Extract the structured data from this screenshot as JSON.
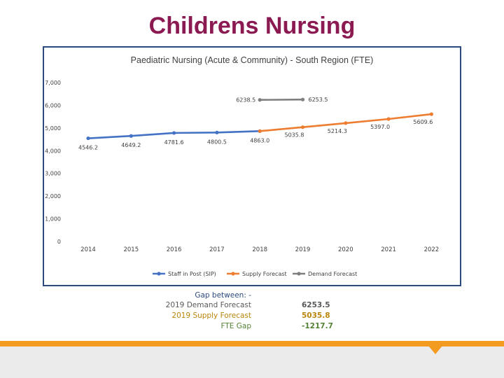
{
  "slide": {
    "title": "Childrens Nursing"
  },
  "chart_data": {
    "type": "line",
    "title": "Paediatric Nursing (Acute & Community) - South Region (FTE)",
    "categories": [
      "2014",
      "2015",
      "2016",
      "2017",
      "2018",
      "2019",
      "2020",
      "2021",
      "2022"
    ],
    "ylim": [
      0,
      7000
    ],
    "yticks": [
      0,
      1000,
      2000,
      3000,
      4000,
      5000,
      6000,
      7000
    ],
    "ytick_labels": [
      "0",
      "1,000",
      "2,000",
      "3,000",
      "4,000",
      "5,000",
      "6,000",
      "7,000"
    ],
    "grid": false,
    "legend_position": "bottom",
    "series": [
      {
        "name": "Staff in Post (SIP)",
        "color": "#4472c4",
        "x": [
          "2014",
          "2015",
          "2016",
          "2017",
          "2018"
        ],
        "values": [
          4546.2,
          4649.2,
          4781.6,
          4800.5,
          4863.0
        ],
        "labels": [
          "4546.2",
          "4649.2",
          "4781.6",
          "4800.5",
          "4863.0"
        ]
      },
      {
        "name": "Supply Forecast",
        "color": "#ed7d31",
        "x": [
          "2018",
          "2019",
          "2020",
          "2021",
          "2022"
        ],
        "values": [
          4863.0,
          5035.8,
          5214.3,
          5397.0,
          5609.6
        ],
        "labels": [
          "",
          "5035.8",
          "5214.3",
          "5397.0",
          "5609.6"
        ]
      },
      {
        "name": "Demand Forecast",
        "color": "#7f7f7f",
        "x": [
          "2018",
          "2019"
        ],
        "values": [
          6238.5,
          6253.5
        ],
        "labels": [
          "6238.5",
          "6253.5"
        ]
      }
    ]
  },
  "gap_table": {
    "heading": "Gap between: -",
    "rows": [
      {
        "label": "2019 Demand Forecast",
        "value": "6253.5",
        "label_color": "#595959",
        "value_color": "#595959"
      },
      {
        "label": "2019 Supply Forecast",
        "value": "5035.8",
        "label_color": "#b8860b",
        "value_color": "#b8860b"
      },
      {
        "label": "FTE Gap",
        "value": "-1217.7",
        "label_color": "#548235",
        "value_color": "#548235"
      }
    ]
  }
}
